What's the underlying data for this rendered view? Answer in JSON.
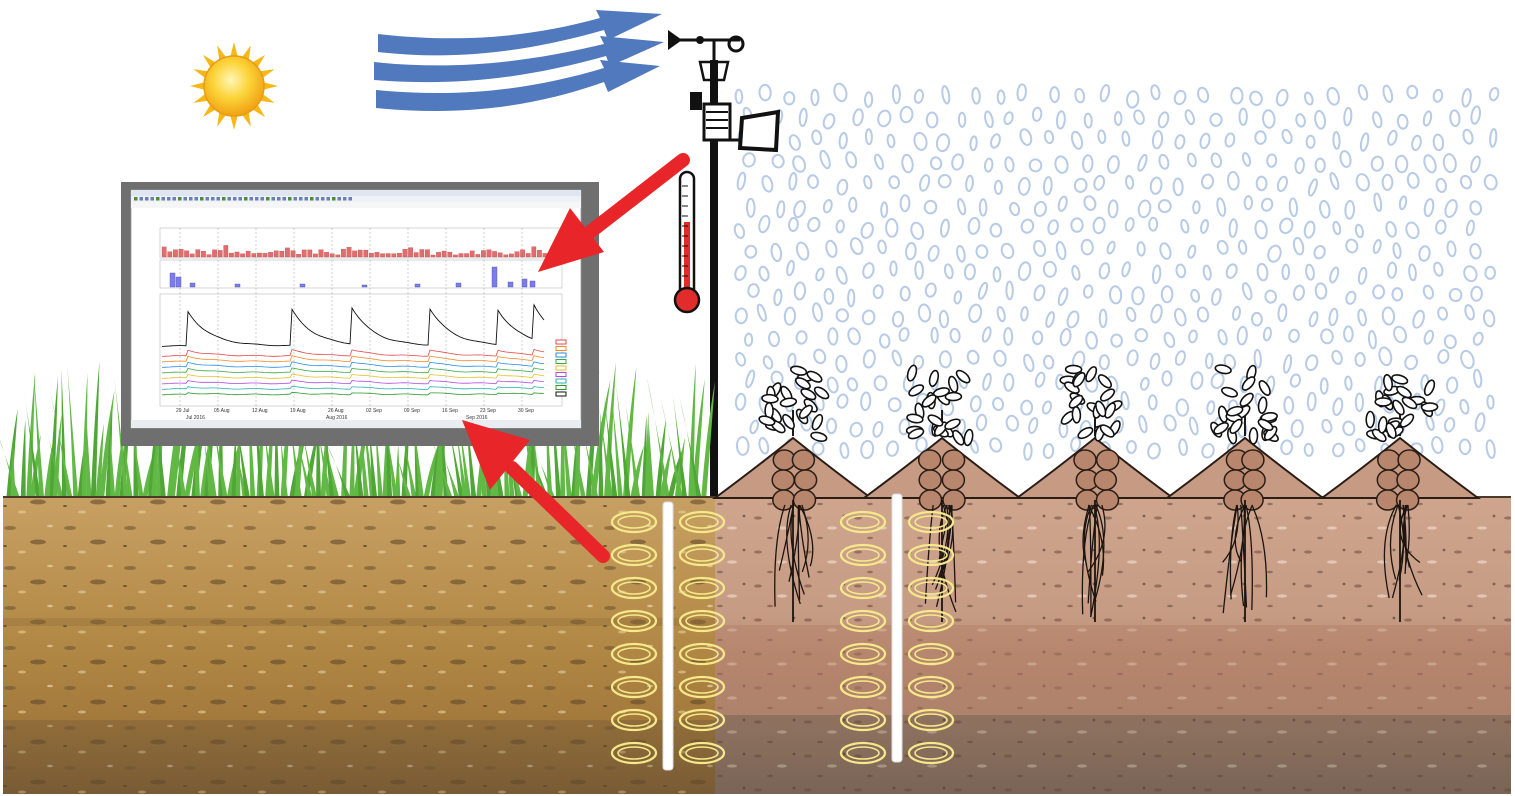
{
  "scene": "soil moisture monitoring field",
  "colors": {
    "sky": "#ffffff",
    "sun": "#f9c51b",
    "wind": "#5079be",
    "rain": "#b7cbe6",
    "grass": "#5fb442",
    "soil_left": "#b58e4a",
    "soil_right": "#c79b83",
    "arrow": "#e8262a",
    "sensor_ring": "#f5e98a",
    "chart_frame": "#6f6f6f"
  },
  "icons": {
    "sun": "sun-icon",
    "wind": "wind-icon",
    "weather_station": "weather-station-icon",
    "thermometer": "thermometer-icon"
  },
  "monitor": {
    "panels": 3,
    "x_ticks": [
      "29 Jul",
      "05 Aug",
      "12 Aug",
      "19 Aug",
      "26 Aug",
      "02 Sep",
      "09 Sep",
      "16 Sep",
      "23 Sep",
      "30 Sep"
    ],
    "period_labels": [
      "Jul 2016",
      "Aug 2016",
      "Sep 2016"
    ]
  },
  "crop_rows": 5,
  "access_tubes": 2,
  "sensor_rings_per_tube": 8
}
